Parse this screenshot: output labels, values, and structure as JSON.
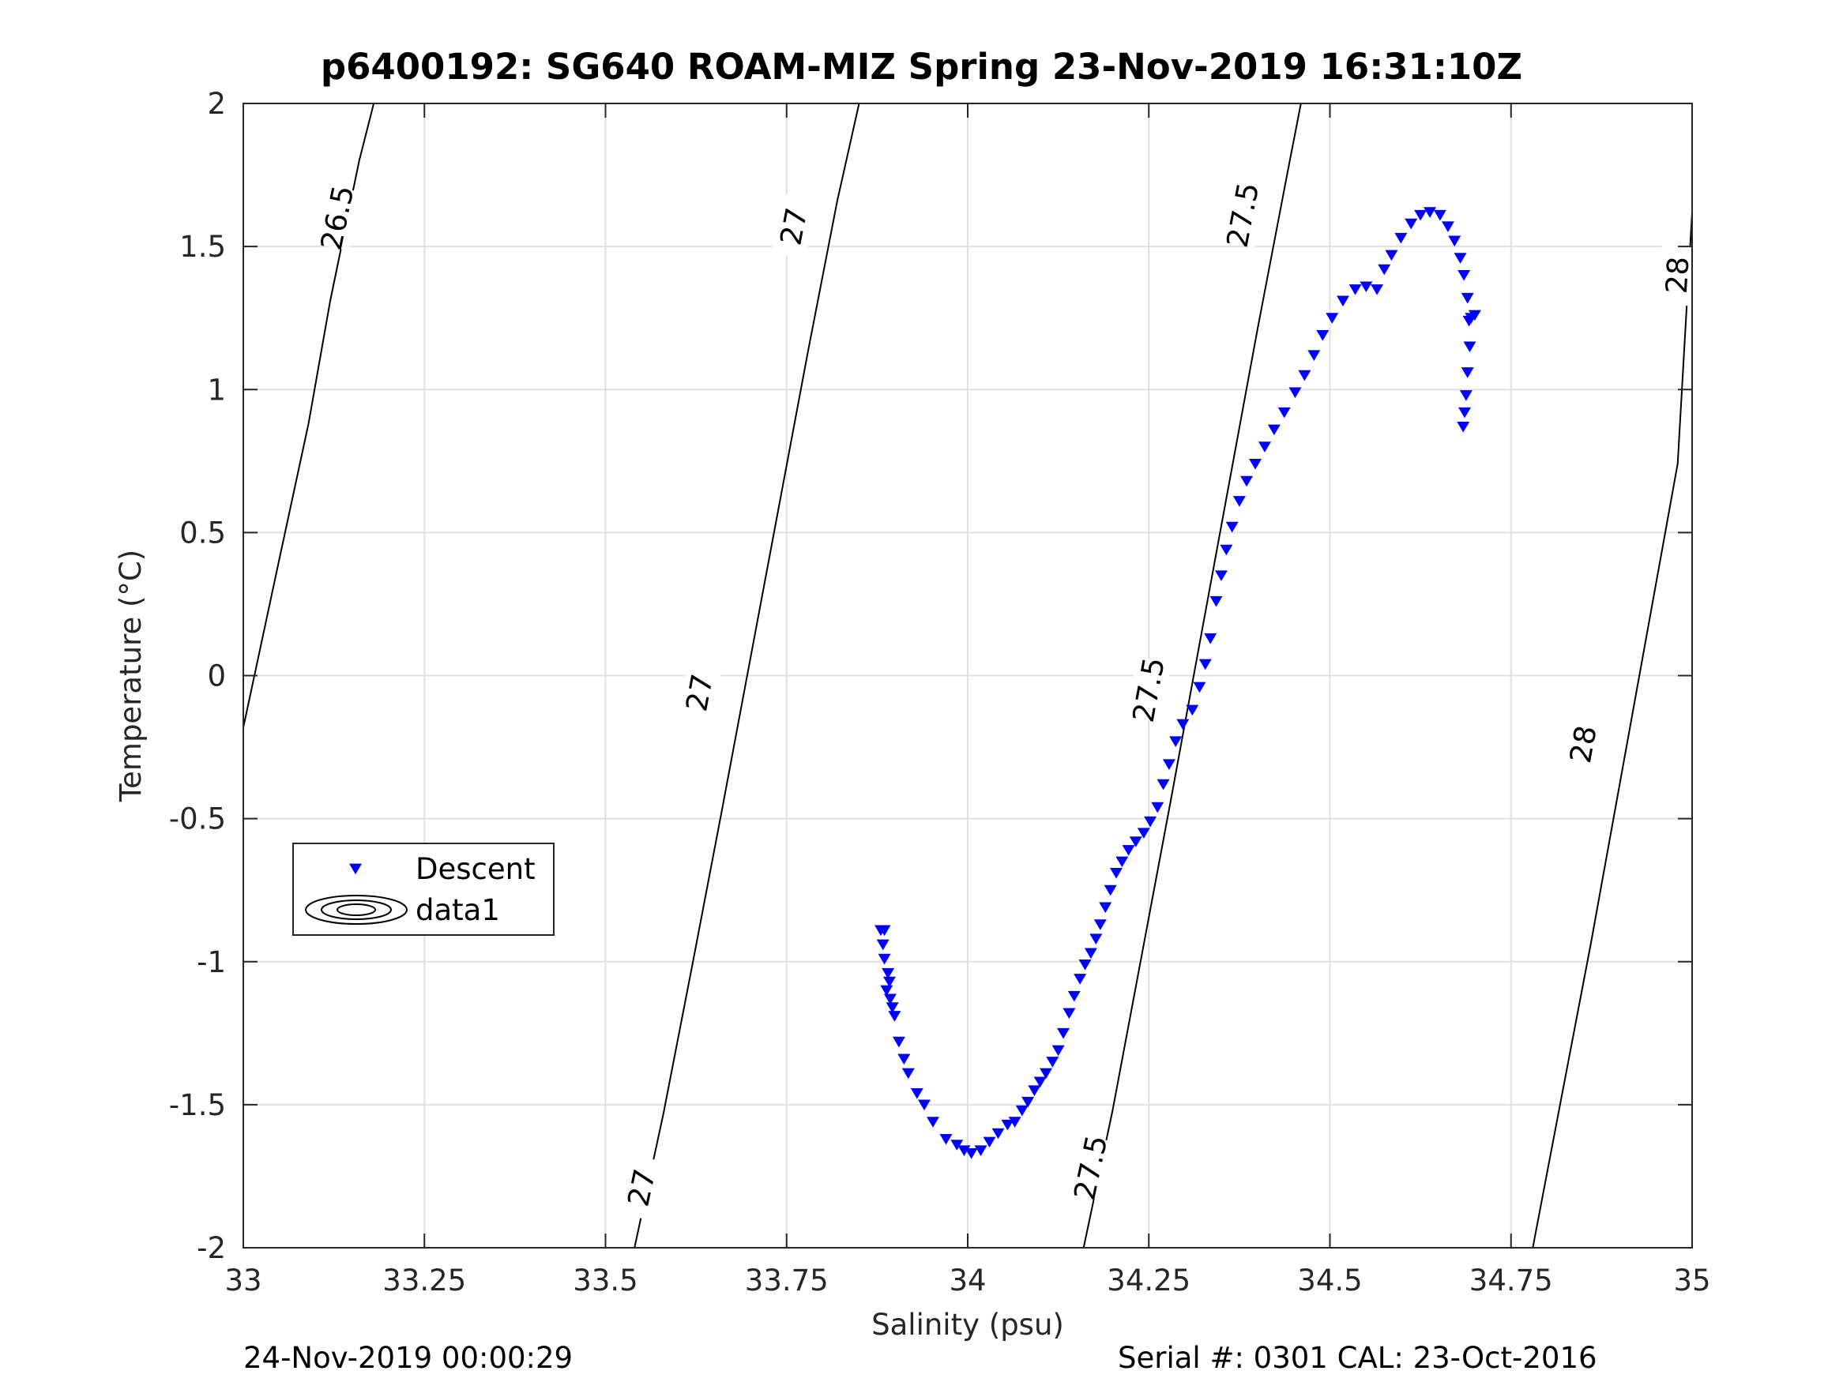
{
  "title": "p6400192: SG640 ROAM-MIZ Spring 23-Nov-2019 16:31:10Z",
  "footer": {
    "left": "24-Nov-2019 00:00:29",
    "right": "Serial #: 0301  CAL: 23-Oct-2016"
  },
  "colors": {
    "descent": "#0000ff",
    "contour": "#000000",
    "grid": "#e0e0e0"
  },
  "chart_data": {
    "type": "scatter",
    "xlabel": "Salinity (psu)",
    "ylabel": "Temperature (°C)",
    "xlim": [
      33,
      35
    ],
    "ylim": [
      -2,
      2
    ],
    "xticks": [
      33,
      33.25,
      33.5,
      33.75,
      34,
      34.25,
      34.5,
      34.75,
      35
    ],
    "xtick_labels": [
      "33",
      "33.25",
      "33.5",
      "33.75",
      "34",
      "34.25",
      "34.5",
      "34.75",
      "35"
    ],
    "yticks": [
      -2,
      -1.5,
      -1,
      -0.5,
      0,
      0.5,
      1,
      1.5,
      2
    ],
    "ytick_labels": [
      "-2",
      "-1.5",
      "-1",
      "-0.5",
      "0",
      "0.5",
      "1",
      "1.5",
      "2"
    ],
    "grid": true,
    "legend": {
      "position": "mid-left",
      "entries": [
        {
          "label": "Descent",
          "marker": "triangle-down"
        },
        {
          "label": "data1",
          "marker": "contour"
        }
      ]
    },
    "series": [
      {
        "name": "Descent",
        "marker": "triangle-down",
        "points": [
          [
            33.88,
            -0.89
          ],
          [
            33.885,
            -0.89
          ],
          [
            33.883,
            -0.94
          ],
          [
            33.885,
            -0.99
          ],
          [
            33.89,
            -1.04
          ],
          [
            33.892,
            -1.07
          ],
          [
            33.888,
            -1.1
          ],
          [
            33.893,
            -1.13
          ],
          [
            33.896,
            -1.16
          ],
          [
            33.899,
            -1.19
          ],
          [
            33.905,
            -1.28
          ],
          [
            33.912,
            -1.34
          ],
          [
            33.918,
            -1.39
          ],
          [
            33.93,
            -1.46
          ],
          [
            33.94,
            -1.5
          ],
          [
            33.952,
            -1.56
          ],
          [
            33.97,
            -1.62
          ],
          [
            33.985,
            -1.64
          ],
          [
            33.995,
            -1.66
          ],
          [
            34.005,
            -1.67
          ],
          [
            34.018,
            -1.66
          ],
          [
            34.03,
            -1.63
          ],
          [
            34.042,
            -1.6
          ],
          [
            34.055,
            -1.57
          ],
          [
            34.065,
            -1.56
          ],
          [
            34.075,
            -1.52
          ],
          [
            34.083,
            -1.49
          ],
          [
            34.092,
            -1.45
          ],
          [
            34.1,
            -1.42
          ],
          [
            34.108,
            -1.39
          ],
          [
            34.117,
            -1.35
          ],
          [
            34.125,
            -1.31
          ],
          [
            34.132,
            -1.25
          ],
          [
            34.14,
            -1.18
          ],
          [
            34.147,
            -1.12
          ],
          [
            34.155,
            -1.06
          ],
          [
            34.162,
            -1.01
          ],
          [
            34.17,
            -0.97
          ],
          [
            34.177,
            -0.92
          ],
          [
            34.183,
            -0.87
          ],
          [
            34.19,
            -0.81
          ],
          [
            34.197,
            -0.75
          ],
          [
            34.205,
            -0.69
          ],
          [
            34.213,
            -0.65
          ],
          [
            34.222,
            -0.61
          ],
          [
            34.232,
            -0.58
          ],
          [
            34.243,
            -0.55
          ],
          [
            34.252,
            -0.51
          ],
          [
            34.262,
            -0.46
          ],
          [
            34.27,
            -0.38
          ],
          [
            34.278,
            -0.31
          ],
          [
            34.287,
            -0.23
          ],
          [
            34.297,
            -0.17
          ],
          [
            34.31,
            -0.12
          ],
          [
            34.32,
            -0.04
          ],
          [
            34.328,
            0.04
          ],
          [
            34.335,
            0.13
          ],
          [
            34.343,
            0.26
          ],
          [
            34.35,
            0.35
          ],
          [
            34.357,
            0.44
          ],
          [
            34.365,
            0.52
          ],
          [
            34.375,
            0.61
          ],
          [
            34.385,
            0.68
          ],
          [
            34.397,
            0.74
          ],
          [
            34.41,
            0.8
          ],
          [
            34.423,
            0.86
          ],
          [
            34.437,
            0.92
          ],
          [
            34.452,
            0.99
          ],
          [
            34.465,
            1.05
          ],
          [
            34.478,
            1.12
          ],
          [
            34.49,
            1.19
          ],
          [
            34.503,
            1.25
          ],
          [
            34.518,
            1.31
          ],
          [
            34.535,
            1.35
          ],
          [
            34.55,
            1.36
          ],
          [
            34.565,
            1.35
          ],
          [
            34.575,
            1.42
          ],
          [
            34.585,
            1.47
          ],
          [
            34.598,
            1.53
          ],
          [
            34.612,
            1.58
          ],
          [
            34.625,
            1.61
          ],
          [
            34.638,
            1.62
          ],
          [
            34.652,
            1.61
          ],
          [
            34.663,
            1.57
          ],
          [
            34.672,
            1.52
          ],
          [
            34.68,
            1.46
          ],
          [
            34.685,
            1.4
          ],
          [
            34.69,
            1.32
          ],
          [
            34.692,
            1.24
          ],
          [
            34.695,
            1.25
          ],
          [
            34.7,
            1.26
          ],
          [
            34.693,
            1.15
          ],
          [
            34.69,
            1.06
          ],
          [
            34.688,
            0.98
          ],
          [
            34.686,
            0.92
          ],
          [
            34.684,
            0.87
          ]
        ]
      }
    ],
    "contours": [
      {
        "level": "26.5",
        "points": [
          [
            32.99,
            -0.3
          ],
          [
            33.05,
            0.41
          ],
          [
            33.09,
            0.88
          ],
          [
            33.12,
            1.31
          ],
          [
            33.16,
            1.8
          ],
          [
            33.18,
            2.0
          ]
        ],
        "labels": [
          {
            "s": 33.13,
            "t": 1.6,
            "text": "26.5"
          }
        ]
      },
      {
        "level": "27",
        "points": [
          [
            33.54,
            -2.0
          ],
          [
            33.58,
            -1.53
          ],
          [
            33.62,
            -1.01
          ],
          [
            33.66,
            -0.48
          ],
          [
            33.7,
            0.06
          ],
          [
            33.74,
            0.6
          ],
          [
            33.78,
            1.14
          ],
          [
            33.82,
            1.66
          ],
          [
            33.85,
            2.0
          ]
        ],
        "labels": [
          {
            "s": 33.55,
            "t": -1.79,
            "text": "27"
          },
          {
            "s": 33.63,
            "t": -0.06,
            "text": "27"
          },
          {
            "s": 33.76,
            "t": 1.57,
            "text": "27"
          }
        ]
      },
      {
        "level": "27.5",
        "points": [
          [
            34.16,
            -2.0
          ],
          [
            34.2,
            -1.52
          ],
          [
            34.24,
            -0.98
          ],
          [
            34.28,
            -0.44
          ],
          [
            34.32,
            0.11
          ],
          [
            34.36,
            0.66
          ],
          [
            34.4,
            1.21
          ],
          [
            34.44,
            1.74
          ],
          [
            34.46,
            2.0
          ]
        ],
        "labels": [
          {
            "s": 34.17,
            "t": -1.72,
            "text": "27.5"
          },
          {
            "s": 34.25,
            "t": -0.05,
            "text": "27.5"
          },
          {
            "s": 34.38,
            "t": 1.61,
            "text": "27.5"
          }
        ]
      },
      {
        "level": "28",
        "points": [
          [
            34.78,
            -2.0
          ],
          [
            34.82,
            -1.47
          ],
          [
            34.86,
            -0.94
          ],
          [
            34.9,
            -0.38
          ],
          [
            34.94,
            0.18
          ],
          [
            34.98,
            0.74
          ],
          [
            35.0,
            1.62
          ]
        ],
        "labels": [
          {
            "s": 34.85,
            "t": -0.24,
            "text": "28"
          },
          {
            "s": 34.98,
            "t": 1.4,
            "text": "28"
          }
        ]
      }
    ]
  }
}
